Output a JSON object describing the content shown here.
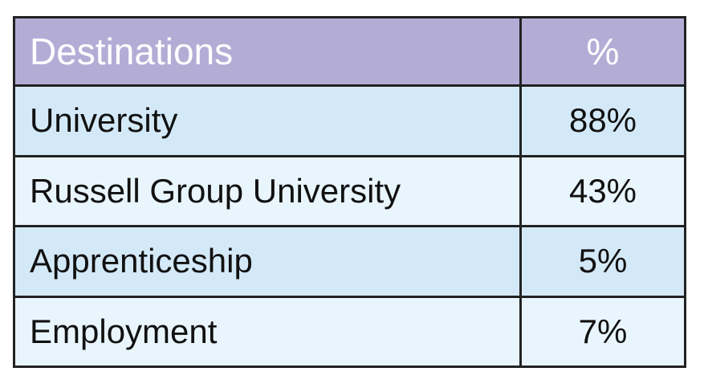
{
  "table": {
    "header": [
      "Destinations",
      "%"
    ],
    "rows": [
      [
        "University",
        "88%"
      ],
      [
        "Russell Group University",
        "43%"
      ],
      [
        "Apprenticeship",
        "5%"
      ],
      [
        "Employment",
        "7%"
      ]
    ]
  }
}
